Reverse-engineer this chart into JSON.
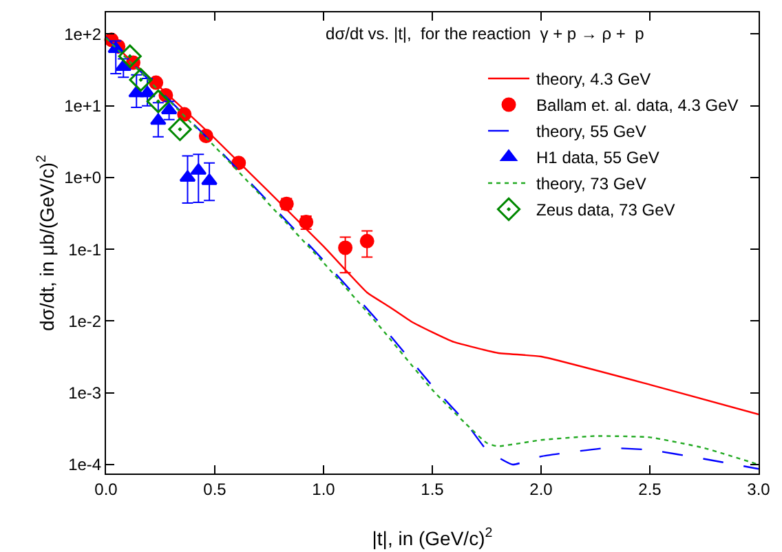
{
  "chart_data": {
    "type": "line",
    "title": "dσ/dt vs. |t|,  for the reaction  γ + p → ρ +  p",
    "xlabel": "|t|, in (GeV/c)$^{2}$",
    "ylabel": "dσ/dt, in μb/(GeV/c)$^{2}$",
    "log": "y",
    "xlim": [
      0,
      3
    ],
    "xticks": [
      {
        "value": 0,
        "label": "0.0"
      },
      {
        "value": 0.5,
        "label": "0.5"
      },
      {
        "value": 1,
        "label": "1.0"
      },
      {
        "value": 1.5,
        "label": "1.5"
      },
      {
        "value": 2,
        "label": "2.0"
      },
      {
        "value": 2.5,
        "label": "2.5"
      },
      {
        "value": 3,
        "label": "3.0"
      }
    ],
    "ylim": [
      7.5e-05,
      200
    ],
    "yticks": [
      {
        "value": 0.0001,
        "label": "1e-4"
      },
      {
        "value": 0.001,
        "label": "1e-3"
      },
      {
        "value": 0.01,
        "label": "1e-2"
      },
      {
        "value": 0.1,
        "label": "1e-1"
      },
      {
        "value": 1,
        "label": "1e+0"
      },
      {
        "value": 10,
        "label": "1e+1"
      },
      {
        "value": 100,
        "label": "1e+2"
      }
    ],
    "grid": false,
    "legend": "top right",
    "series": [
      {
        "name": "theory, 4.3 GeV",
        "line_style": "solid",
        "color": "#ff0000",
        "x": [
          0,
          0.5,
          1,
          1.2,
          1.3,
          1.4,
          1.5,
          1.6,
          1.8,
          2,
          2.5,
          3
        ],
        "values": [
          90,
          3.5,
          0.11,
          0.025,
          0.016,
          0.01,
          0.007,
          0.0051,
          0.0036,
          0.0032,
          0.0013,
          0.0005
        ]
      },
      {
        "name": "Ballam et. al. data, 4.3 GeV",
        "type": "scatter",
        "marker": "circle",
        "color": "#ff0000",
        "x": [
          0.025,
          0.056,
          0.125,
          0.23,
          0.275,
          0.36,
          0.46,
          0.61,
          0.83,
          0.92,
          1.1,
          1.2
        ],
        "values": [
          83,
          67,
          40,
          21,
          14,
          7.6,
          3.8,
          1.6,
          0.43,
          0.24,
          0.105,
          0.13
        ],
        "errors": [
          null,
          null,
          null,
          null,
          null,
          null,
          null,
          null,
          [
            0.36,
            0.51
          ],
          [
            0.19,
            0.29
          ],
          [
            0.047,
            0.148
          ],
          [
            0.078,
            0.18
          ]
        ]
      },
      {
        "name": "theory, 55 GeV",
        "line_style": "dashed",
        "color": "#0000ff",
        "x": [
          0,
          0.5,
          1,
          1.25,
          1.5,
          1.65,
          1.75,
          1.87,
          2,
          2.3,
          2.5,
          2.75,
          3
        ],
        "values": [
          90,
          2.8,
          0.07,
          0.01,
          0.00125,
          0.0004,
          0.00016,
          0.0001,
          0.00013,
          0.00017,
          0.00016,
          0.00012,
          8.7e-05
        ]
      },
      {
        "name": "H1 data, 55 GeV",
        "type": "scatter",
        "marker": "triangle",
        "color": "#0000ff",
        "x": [
          0.045,
          0.08,
          0.14,
          0.19,
          0.24,
          0.29,
          0.375,
          0.425,
          0.475
        ],
        "values": [
          62,
          35,
          15,
          15,
          6.2,
          8.7,
          1.0,
          1.25,
          0.9
        ],
        "errors": [
          [
            28,
            80
          ],
          [
            25,
            45
          ],
          [
            9.5,
            27
          ],
          [
            10,
            24
          ],
          [
            3.7,
            11
          ],
          [
            6.4,
            11.5
          ],
          [
            0.44,
            2
          ],
          [
            0.45,
            2.1
          ],
          [
            0.48,
            1.6
          ]
        ]
      },
      {
        "name": "theory, 73 GeV",
        "line_style": "dotted",
        "color": "#22aa22",
        "x": [
          0,
          0.5,
          1,
          1.25,
          1.5,
          1.65,
          1.75,
          1.8,
          2,
          2.25,
          2.5,
          2.75,
          3
        ],
        "values": [
          88,
          2.7,
          0.065,
          0.009,
          0.0011,
          0.00038,
          0.0002,
          0.00018,
          0.00022,
          0.00025,
          0.00024,
          0.00017,
          0.0001
        ]
      },
      {
        "name": "Zeus data, 73 GeV",
        "type": "scatter",
        "marker": "diamond",
        "color": "#008800",
        "x": [
          0.11,
          0.16,
          0.24,
          0.34
        ],
        "values": [
          49,
          23,
          11.5,
          4.7
        ]
      }
    ]
  }
}
